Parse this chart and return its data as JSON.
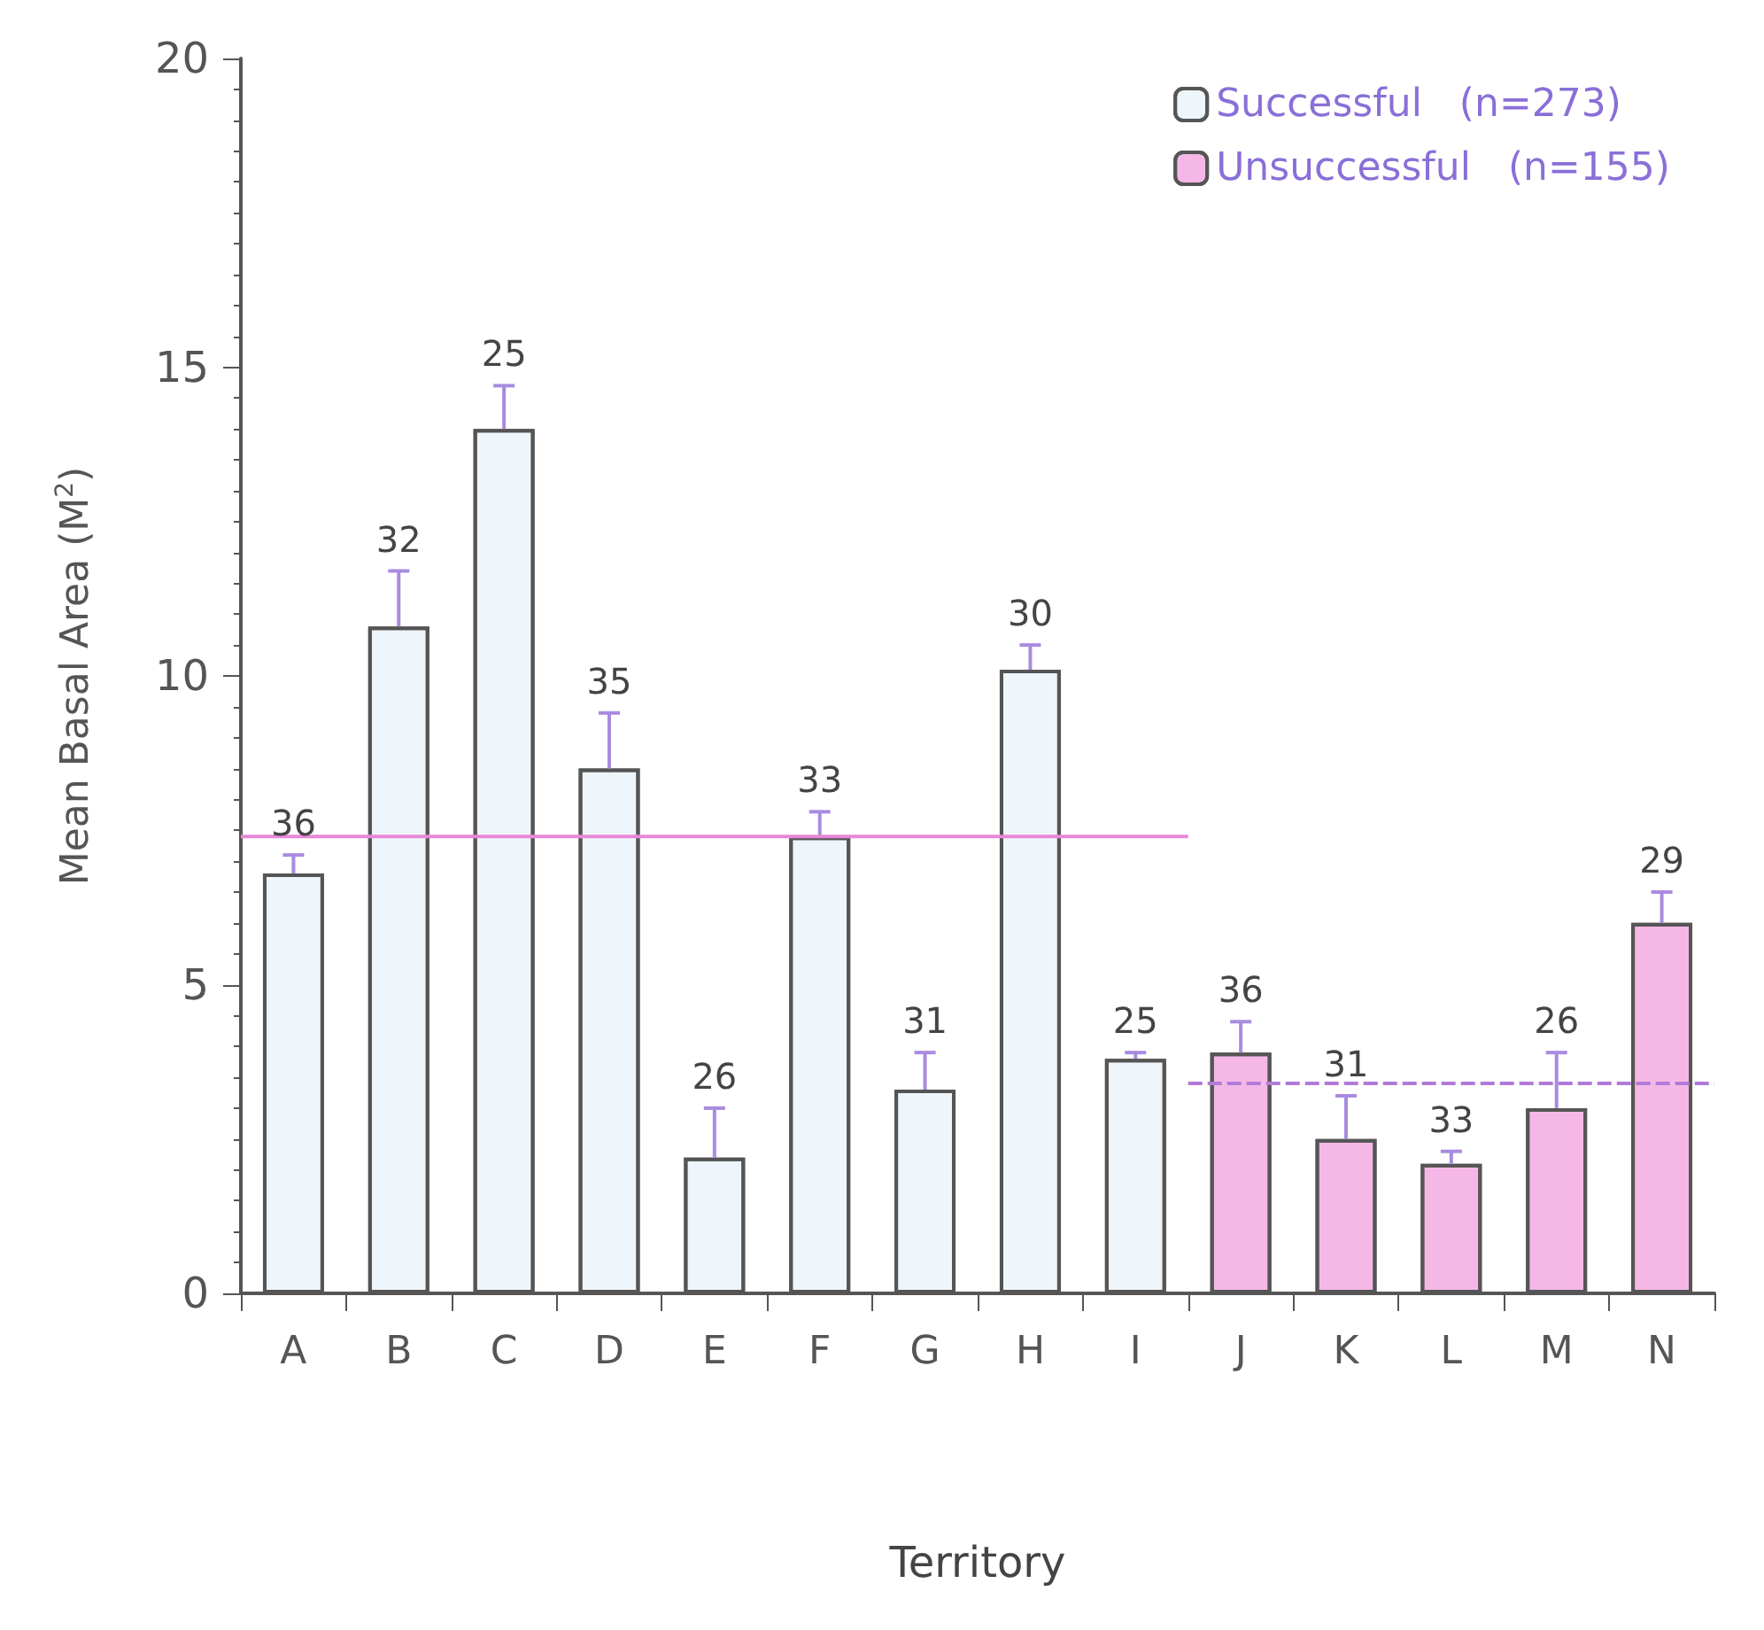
{
  "chart_data": {
    "type": "bar",
    "xlabel": "Territory",
    "ylabel": "Mean Basal Area (M$^{2}$)",
    "categories": [
      "A",
      "B",
      "C",
      "D",
      "E",
      "F",
      "G",
      "H",
      "I",
      "J",
      "K",
      "L",
      "M",
      "N"
    ],
    "series": [
      {
        "name": "Successful   (n=273)",
        "color": "#eef6fb",
        "values": [
          6.8,
          10.8,
          14.0,
          8.5,
          2.2,
          7.4,
          3.3,
          10.1,
          3.8,
          null,
          null,
          null,
          null,
          null
        ],
        "errors": [
          0.3,
          0.9,
          0.7,
          0.9,
          0.8,
          0.4,
          0.6,
          0.4,
          0.1,
          null,
          null,
          null,
          null,
          null
        ]
      },
      {
        "name": "Unsuccessful   (n=155)",
        "color": "#f5b8e6",
        "values": [
          null,
          null,
          null,
          null,
          null,
          null,
          null,
          null,
          null,
          3.9,
          2.5,
          2.1,
          3.0,
          6.0
        ],
        "errors": [
          null,
          null,
          null,
          null,
          null,
          null,
          null,
          null,
          null,
          0.5,
          0.7,
          0.2,
          0.9,
          0.5
        ]
      }
    ],
    "annotations": [
      {
        "text": "36",
        "x": "A",
        "y": 7.1
      },
      {
        "text": "32",
        "x": "B",
        "y": 11.7
      },
      {
        "text": "25",
        "x": "C",
        "y": 14.7
      },
      {
        "text": "35",
        "x": "D",
        "y": 9.4
      },
      {
        "text": "26",
        "x": "E",
        "y": 3.0
      },
      {
        "text": "33",
        "x": "F",
        "y": 7.8
      },
      {
        "text": "31",
        "x": "G",
        "y": 3.9
      },
      {
        "text": "30",
        "x": "H",
        "y": 10.5
      },
      {
        "text": "25",
        "x": "I",
        "y": 3.9
      },
      {
        "text": "36",
        "x": "J",
        "y": 4.4
      },
      {
        "text": "31",
        "x": "K",
        "y": 3.2
      },
      {
        "text": "33",
        "x": "L",
        "y": 2.3
      },
      {
        "text": "26",
        "x": "M",
        "y": 3.9
      },
      {
        "text": "29",
        "x": "N",
        "y": 6.5
      }
    ],
    "ref_lines": [
      {
        "axis": "y",
        "value": 7.4,
        "color": "#e887d8"
      },
      {
        "axis": "y",
        "value": 3.4,
        "color": "#b27ad8",
        "line_style": "dashed"
      }
    ],
    "ylim": [
      0,
      20
    ],
    "yticks": [
      0,
      5,
      10,
      15,
      20
    ],
    "grid": false,
    "legend": "top right"
  }
}
